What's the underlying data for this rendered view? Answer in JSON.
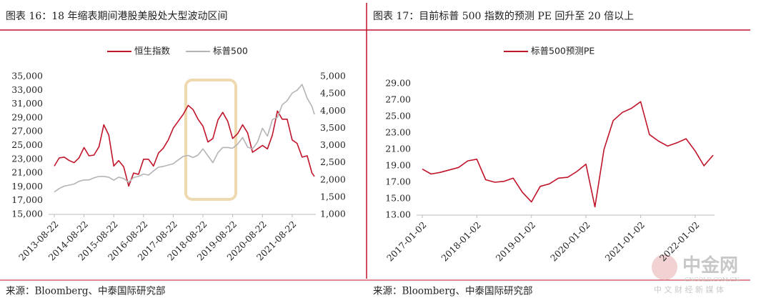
{
  "chart_data": [
    {
      "type": "line",
      "title": "图表 16：18 年缩表期间港股美股处大型波动区间",
      "source": "来源：Bloomberg、中泰国际研究部",
      "x": [
        "2013-08-22",
        "2013-10-22",
        "2013-12-22",
        "2014-02-22",
        "2014-04-22",
        "2014-06-22",
        "2014-08-22",
        "2014-10-22",
        "2014-12-22",
        "2015-02-22",
        "2015-04-22",
        "2015-06-22",
        "2015-08-22",
        "2015-10-22",
        "2015-12-22",
        "2016-02-22",
        "2016-04-22",
        "2016-06-22",
        "2016-08-22",
        "2016-10-22",
        "2016-12-22",
        "2017-02-22",
        "2017-04-22",
        "2017-06-22",
        "2017-08-22",
        "2017-10-22",
        "2017-12-22",
        "2018-02-22",
        "2018-04-22",
        "2018-06-22",
        "2018-08-22",
        "2018-10-22",
        "2018-12-22",
        "2019-02-22",
        "2019-04-22",
        "2019-06-22",
        "2019-08-22",
        "2019-10-22",
        "2019-12-22",
        "2020-02-22",
        "2020-04-22",
        "2020-06-22",
        "2020-08-22",
        "2020-10-22",
        "2020-12-22",
        "2021-02-22",
        "2021-04-22",
        "2021-06-22",
        "2021-08-22",
        "2021-10-22",
        "2021-12-22",
        "2022-02-22",
        "2022-04-22",
        "2022-05-22"
      ],
      "series": [
        {
          "name": "恒生指数",
          "color": "#c0142a",
          "axis": "y",
          "values": [
            22000,
            23200,
            23300,
            22800,
            22500,
            23200,
            24700,
            23500,
            23600,
            24800,
            28000,
            26500,
            22000,
            22800,
            21900,
            19100,
            21000,
            20800,
            23000,
            23000,
            22000,
            23900,
            24600,
            25800,
            27500,
            28500,
            29500,
            30800,
            30200,
            28800,
            27800,
            25500,
            26000,
            28700,
            29800,
            28500,
            26000,
            26700,
            28000,
            26800,
            24000,
            24500,
            25000,
            24500,
            26500,
            30000,
            28800,
            28800,
            25800,
            25300,
            23300,
            23500,
            21000,
            20500
          ]
        },
        {
          "name": "标普500",
          "color": "#b4b4b4",
          "axis": "y2",
          "values": [
            1650,
            1750,
            1820,
            1850,
            1880,
            1960,
            2000,
            2000,
            2060,
            2100,
            2100,
            2080,
            1990,
            2080,
            2040,
            1930,
            2070,
            2100,
            2170,
            2140,
            2260,
            2370,
            2390,
            2430,
            2470,
            2580,
            2680,
            2710,
            2650,
            2720,
            2900,
            2700,
            2500,
            2790,
            2940,
            2940,
            2920,
            3040,
            3230,
            2950,
            2900,
            3100,
            3500,
            3270,
            3750,
            3810,
            4180,
            4300,
            4520,
            4600,
            4770,
            4370,
            4130,
            3900
          ]
        }
      ],
      "xticks": [
        "2013-08-22",
        "2014-08-22",
        "2015-08-22",
        "2016-08-22",
        "2017-08-22",
        "2018-08-22",
        "2019-08-22",
        "2020-08-22",
        "2021-08-22"
      ],
      "ylim": [
        15000,
        35000
      ],
      "yticks": [
        {
          "value": 15000,
          "label": "15,000"
        },
        {
          "value": 17000,
          "label": "17,000"
        },
        {
          "value": 19000,
          "label": "19,000"
        },
        {
          "value": 21000,
          "label": "21,000"
        },
        {
          "value": 23000,
          "label": "23,000"
        },
        {
          "value": 25000,
          "label": "25,000"
        },
        {
          "value": 27000,
          "label": "27,000"
        },
        {
          "value": 29000,
          "label": "29,000"
        },
        {
          "value": 31000,
          "label": "31,000"
        },
        {
          "value": 33000,
          "label": "33,000"
        },
        {
          "value": 35000,
          "label": "35,000"
        }
      ],
      "y2lim": [
        1000,
        5000
      ],
      "y2ticks": [
        {
          "value": 1000,
          "label": "1,000"
        },
        {
          "value": 1500,
          "label": "1,500"
        },
        {
          "value": 2000,
          "label": "2,000"
        },
        {
          "value": 2500,
          "label": "2,500"
        },
        {
          "value": 3000,
          "label": "3,000"
        },
        {
          "value": 3500,
          "label": "3,500"
        },
        {
          "value": 4000,
          "label": "4,000"
        },
        {
          "value": 4500,
          "label": "4,500"
        },
        {
          "value": 5000,
          "label": "5,000"
        }
      ],
      "legend": "top"
    },
    {
      "type": "line",
      "title": "图表 17：目前标普 500 指数的预测 PE 回升至 20 倍以上",
      "source": "来源：Bloomberg、中泰国际研究部",
      "x": [
        "2017-01-02",
        "2017-03-02",
        "2017-05-02",
        "2017-07-02",
        "2017-09-02",
        "2017-11-02",
        "2018-01-02",
        "2018-03-02",
        "2018-05-02",
        "2018-07-02",
        "2018-09-02",
        "2018-11-02",
        "2019-01-02",
        "2019-03-02",
        "2019-05-02",
        "2019-07-02",
        "2019-09-02",
        "2019-11-02",
        "2020-01-02",
        "2020-03-02",
        "2020-05-02",
        "2020-07-02",
        "2020-09-02",
        "2020-11-02",
        "2021-01-02",
        "2021-03-02",
        "2021-05-02",
        "2021-07-02",
        "2021-09-02",
        "2021-11-02",
        "2022-01-02",
        "2022-03-02",
        "2022-05-02"
      ],
      "series": [
        {
          "name": "标普500预测PE",
          "color": "#c0142a",
          "axis": "y",
          "values": [
            18.6,
            18.0,
            18.2,
            18.5,
            18.8,
            19.6,
            19.8,
            17.3,
            17.0,
            17.1,
            17.5,
            15.8,
            14.6,
            16.5,
            16.8,
            17.5,
            17.6,
            18.3,
            19.2,
            14.0,
            21.0,
            24.5,
            25.5,
            26.0,
            26.8,
            22.8,
            22.0,
            21.4,
            21.8,
            22.3,
            20.8,
            19.0,
            20.3
          ]
        }
      ],
      "xticks": [
        "2017-01-02",
        "2018-01-02",
        "2019-01-02",
        "2020-01-02",
        "2021-01-02",
        "2022-01-02"
      ],
      "ylim": [
        13,
        29
      ],
      "yticks": [
        {
          "value": 13,
          "label": "13.00"
        },
        {
          "value": 15,
          "label": "15.00"
        },
        {
          "value": 17,
          "label": "17.00"
        },
        {
          "value": 19,
          "label": "19.00"
        },
        {
          "value": 21,
          "label": "21.00"
        },
        {
          "value": 23,
          "label": "23.00"
        },
        {
          "value": 25,
          "label": "25.00"
        },
        {
          "value": 27,
          "label": "27.00"
        },
        {
          "value": 29,
          "label": "29.00"
        }
      ],
      "legend": "top"
    }
  ],
  "watermark": {
    "brand": "中金网",
    "site": "CNGOLD.COM.CN",
    "slogan": "中 文 财 经 新 媒 体"
  }
}
